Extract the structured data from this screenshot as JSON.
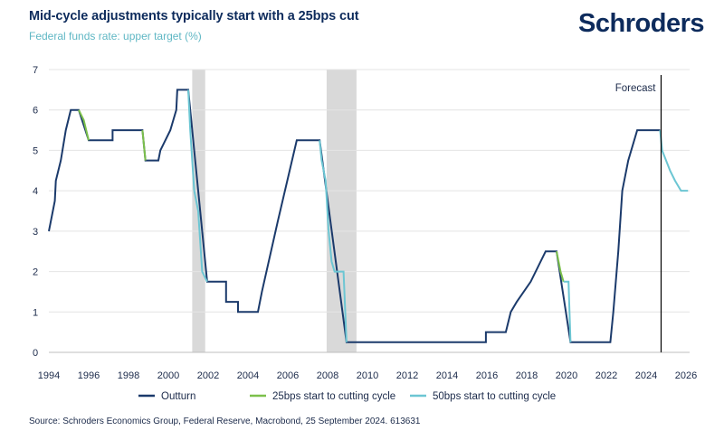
{
  "header": {
    "title": "Mid-cycle adjustments typically start with a 25bps cut",
    "subtitle": "Federal funds rate: upper target (%)",
    "logo_text": "Schroders"
  },
  "footer": {
    "source": "Source: Schroders Economics Group, Federal Reserve, Macrobond, 25 September 2024. 613631"
  },
  "colors": {
    "outturn": "#1b3a6b",
    "cut25": "#7cc04b",
    "cut50": "#6cc6d3",
    "recession": "#d9d9d9",
    "grid": "#e4e4e4",
    "forecast_line": "#000000"
  },
  "chart_data": {
    "type": "line",
    "title": "Mid-cycle adjustments typically start with a 25bps cut",
    "ylabel": "Federal funds rate: upper target (%)",
    "xlim": [
      1994,
      2026.3
    ],
    "ylim": [
      0,
      7
    ],
    "x_ticks": [
      1994,
      1996,
      1998,
      2000,
      2002,
      2004,
      2006,
      2008,
      2010,
      2012,
      2014,
      2016,
      2018,
      2020,
      2022,
      2024,
      2026
    ],
    "y_ticks": [
      0,
      1,
      2,
      3,
      4,
      5,
      6,
      7
    ],
    "legend": [
      "Outturn",
      "25bps start to cutting cycle",
      "50bps start to cutting cycle"
    ],
    "legend_position": "bottom",
    "recession_bands": [
      [
        2001.2,
        2001.85
      ],
      [
        2007.95,
        2009.45
      ]
    ],
    "forecast_start": 2024.75,
    "forecast_label": "Forecast",
    "series": [
      {
        "name": "Outturn",
        "color_key": "outturn",
        "points": [
          [
            1994.0,
            3.0
          ],
          [
            1994.1,
            3.25
          ],
          [
            1994.2,
            3.5
          ],
          [
            1994.3,
            3.75
          ],
          [
            1994.35,
            4.25
          ],
          [
            1994.6,
            4.75
          ],
          [
            1994.85,
            5.5
          ],
          [
            1995.1,
            6.0
          ],
          [
            1995.5,
            6.0
          ],
          [
            1996.0,
            5.25
          ],
          [
            1997.2,
            5.25
          ],
          [
            1997.2,
            5.5
          ],
          [
            1998.7,
            5.5
          ],
          [
            1998.85,
            4.75
          ],
          [
            1999.5,
            4.75
          ],
          [
            1999.6,
            5.0
          ],
          [
            1999.85,
            5.25
          ],
          [
            2000.1,
            5.5
          ],
          [
            2000.25,
            5.75
          ],
          [
            2000.4,
            6.0
          ],
          [
            2000.45,
            6.5
          ],
          [
            2001.0,
            6.5
          ],
          [
            2001.95,
            1.75
          ],
          [
            2002.9,
            1.75
          ],
          [
            2002.9,
            1.25
          ],
          [
            2003.5,
            1.25
          ],
          [
            2003.5,
            1.0
          ],
          [
            2004.5,
            1.0
          ],
          [
            2004.7,
            1.5
          ],
          [
            2005.5,
            3.25
          ],
          [
            2006.45,
            5.25
          ],
          [
            2007.6,
            5.25
          ],
          [
            2008.95,
            0.25
          ],
          [
            2015.95,
            0.25
          ],
          [
            2015.95,
            0.5
          ],
          [
            2016.95,
            0.5
          ],
          [
            2017.2,
            1.0
          ],
          [
            2017.5,
            1.25
          ],
          [
            2018.2,
            1.75
          ],
          [
            2018.95,
            2.5
          ],
          [
            2019.5,
            2.5
          ],
          [
            2020.2,
            0.25
          ],
          [
            2022.2,
            0.25
          ],
          [
            2022.35,
            1.0
          ],
          [
            2022.6,
            2.5
          ],
          [
            2022.8,
            4.0
          ],
          [
            2023.1,
            4.75
          ],
          [
            2023.55,
            5.5
          ],
          [
            2024.7,
            5.5
          ]
        ]
      },
      {
        "name": "25bps start to cutting cycle",
        "color_key": "cut25",
        "segments": [
          [
            [
              1995.5,
              6.0
            ],
            [
              1995.75,
              5.75
            ],
            [
              1996.0,
              5.25
            ]
          ],
          [
            [
              1998.7,
              5.5
            ],
            [
              1998.85,
              4.75
            ]
          ],
          [
            [
              2019.5,
              2.5
            ],
            [
              2019.7,
              2.0
            ],
            [
              2019.85,
              1.75
            ]
          ]
        ]
      },
      {
        "name": "50bps start to cutting cycle",
        "color_key": "cut50",
        "segments": [
          [
            [
              2001.0,
              6.5
            ],
            [
              2001.1,
              5.5
            ],
            [
              2001.3,
              4.0
            ],
            [
              2001.5,
              3.5
            ],
            [
              2001.7,
              2.0
            ],
            [
              2001.95,
              1.75
            ]
          ],
          [
            [
              2007.6,
              5.25
            ],
            [
              2007.7,
              4.75
            ],
            [
              2007.9,
              4.25
            ],
            [
              2008.05,
              3.0
            ],
            [
              2008.2,
              2.25
            ],
            [
              2008.35,
              2.0
            ],
            [
              2008.8,
              2.0
            ],
            [
              2008.95,
              0.25
            ]
          ],
          [
            [
              2019.85,
              1.75
            ],
            [
              2020.1,
              1.75
            ],
            [
              2020.2,
              0.25
            ]
          ],
          [
            [
              2024.7,
              5.5
            ],
            [
              2024.8,
              5.0
            ],
            [
              2025.0,
              4.75
            ],
            [
              2025.2,
              4.5
            ],
            [
              2025.45,
              4.25
            ],
            [
              2025.75,
              4.0
            ],
            [
              2026.1,
              4.0
            ]
          ]
        ]
      }
    ]
  }
}
